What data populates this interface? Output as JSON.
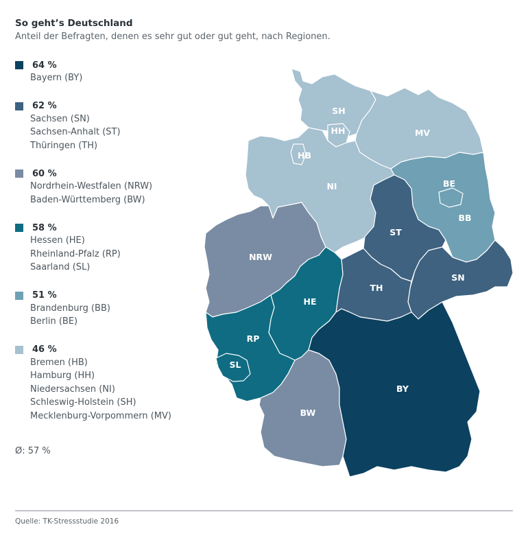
{
  "title": "So geht’s Deutschland",
  "subtitle": "Anteil der Befragten, denen es sehr gut oder gut geht, nach Regionen.",
  "legend": [
    {
      "value": "64 %",
      "color": "#0c4160",
      "regions": [
        "Bayern (BY)"
      ]
    },
    {
      "value": "62 %",
      "color": "#3e6280",
      "regions": [
        "Sachsen (SN)",
        "Sachsen-Anhalt (ST)",
        "Thüringen (TH)"
      ]
    },
    {
      "value": "60 %",
      "color": "#7a8ca3",
      "regions": [
        "Nordrhein-Westfalen (NRW)",
        "Baden-Württemberg (BW)"
      ]
    },
    {
      "value": "58 %",
      "color": "#0f6c82",
      "regions": [
        "Hessen (HE)",
        "Rheinland-Pfalz (RP)",
        "Saarland (SL)"
      ]
    },
    {
      "value": "51 %",
      "color": "#6fa0b4",
      "regions": [
        "Brandenburg (BB)",
        "Berlin (BE)"
      ]
    },
    {
      "value": "46 %",
      "color": "#a6c1d0",
      "regions": [
        "Bremen (HB)",
        "Hamburg (HH)",
        "Niedersachsen (NI)",
        "Schleswig-Holstein (SH)",
        "Mecklenburg-Vorpommern (MV)"
      ]
    }
  ],
  "average": "Ø: 57 %",
  "source": "Quelle: TK-Stressstudie 2016",
  "map": {
    "states": [
      {
        "code": "SH",
        "value": 46
      },
      {
        "code": "HH",
        "value": 46
      },
      {
        "code": "MV",
        "value": 46
      },
      {
        "code": "HB",
        "value": 46
      },
      {
        "code": "NI",
        "value": 46
      },
      {
        "code": "BE",
        "value": 51
      },
      {
        "code": "BB",
        "value": 51
      },
      {
        "code": "ST",
        "value": 62
      },
      {
        "code": "NRW",
        "value": 60
      },
      {
        "code": "SN",
        "value": 62
      },
      {
        "code": "TH",
        "value": 62
      },
      {
        "code": "HE",
        "value": 58
      },
      {
        "code": "RP",
        "value": 58
      },
      {
        "code": "SL",
        "value": 58
      },
      {
        "code": "BW",
        "value": 60
      },
      {
        "code": "BY",
        "value": 64
      }
    ]
  }
}
